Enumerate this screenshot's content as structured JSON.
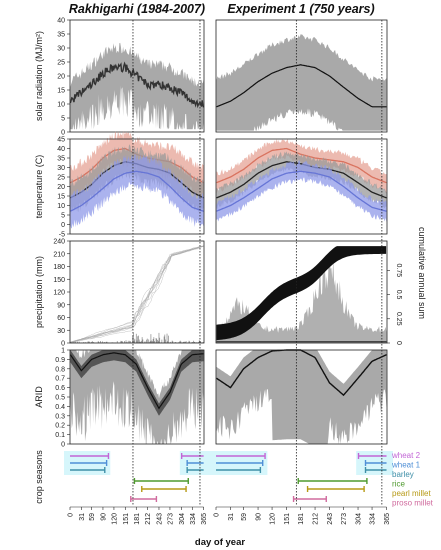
{
  "figure": {
    "left_title": "Rakhigarhi (1984-2007)",
    "right_title": "Experiment 1 (750 years)",
    "x_axis_label": "day of year",
    "right_axis_label": "cumulative annual sum"
  },
  "chart_data": [
    {
      "panel": "solar radiation",
      "type": "line",
      "ylabel": "solar radiation (MJ/m²)",
      "ylim": [
        0,
        40
      ],
      "y_ticks": [
        0,
        5,
        10,
        15,
        20,
        25,
        30,
        35,
        40
      ],
      "x": [
        1,
        31,
        59,
        90,
        120,
        151,
        181,
        212,
        243,
        273,
        304,
        334,
        365
      ],
      "left_mean": [
        11,
        14,
        17,
        21,
        23,
        23,
        20,
        17,
        17,
        16,
        14,
        11,
        10
      ],
      "right_mean": [
        9,
        11,
        14,
        18,
        21,
        23,
        24,
        23,
        20,
        16,
        12,
        9,
        9
      ]
    },
    {
      "panel": "temperature",
      "type": "area",
      "ylabel": "temperature (C)",
      "ylim": [
        -5,
        45
      ],
      "y_ticks": [
        -5,
        0,
        5,
        10,
        15,
        20,
        25,
        30,
        35,
        40,
        45
      ],
      "x": [
        1,
        31,
        59,
        90,
        120,
        151,
        181,
        212,
        243,
        273,
        304,
        334,
        365
      ],
      "series": [
        {
          "name": "max",
          "color": "#d9735f",
          "values": [
            22,
            25,
            29,
            35,
            39,
            40,
            37,
            35,
            34,
            33,
            30,
            25,
            22
          ]
        },
        {
          "name": "mean",
          "color": "#222222",
          "values": [
            14,
            17,
            21,
            27,
            31,
            33,
            32,
            30,
            29,
            27,
            22,
            17,
            14
          ]
        },
        {
          "name": "min",
          "color": "#6675d6",
          "values": [
            7,
            10,
            14,
            19,
            24,
            27,
            28,
            27,
            25,
            20,
            14,
            9,
            7
          ]
        }
      ]
    },
    {
      "panel": "precipitation",
      "type": "bar",
      "ylabel": "precipitation (mm)",
      "ylim": [
        0,
        240
      ],
      "y_ticks": [
        0,
        30,
        60,
        90,
        120,
        150,
        180,
        210,
        240
      ],
      "right_ylim": [
        0,
        1
      ],
      "right_ticks": [
        0,
        0.25,
        0.5,
        0.75
      ]
    },
    {
      "panel": "ARID",
      "type": "line",
      "ylabel": "ARID",
      "ylim": [
        0,
        1
      ],
      "y_ticks": [
        0,
        0.1,
        0.2,
        0.3,
        0.4,
        0.5,
        0.6,
        0.7,
        0.8,
        0.9,
        1
      ],
      "x": [
        1,
        31,
        59,
        90,
        120,
        151,
        181,
        212,
        243,
        273,
        304,
        334,
        365
      ],
      "left_mean": [
        0.95,
        0.78,
        0.9,
        0.95,
        0.97,
        0.95,
        0.85,
        0.6,
        0.38,
        0.55,
        0.85,
        0.95,
        0.96
      ],
      "right_mean": [
        0.7,
        0.6,
        0.8,
        0.92,
        0.99,
        1.0,
        1.0,
        0.92,
        0.65,
        0.52,
        0.7,
        0.88,
        0.95
      ]
    },
    {
      "panel": "crop seasons",
      "type": "table",
      "ylabel": "crop seasons",
      "x_ticks": [
        0,
        31,
        59,
        90,
        120,
        151,
        181,
        212,
        243,
        273,
        304,
        334,
        365
      ],
      "legend": [
        {
          "name": "wheat 2",
          "color": "#c265d6"
        },
        {
          "name": "wheat 1",
          "color": "#4f8fd6"
        },
        {
          "name": "barley",
          "color": "#3f8fa8"
        },
        {
          "name": "rice",
          "color": "#4f9a2f"
        },
        {
          "name": "pearl millet",
          "color": "#b79a16"
        },
        {
          "name": "proso millet",
          "color": "#d06b9e"
        }
      ],
      "seasons": [
        {
          "crop": "wheat 2",
          "color": "#c265d6",
          "start": 305,
          "end": 105
        },
        {
          "crop": "wheat 1",
          "color": "#4f8fd6",
          "start": 320,
          "end": 100
        },
        {
          "crop": "barley",
          "color": "#3f8fa8",
          "start": 320,
          "end": 95
        },
        {
          "crop": "rice",
          "color": "#4f9a2f",
          "start": 176,
          "end": 323
        },
        {
          "crop": "pearl millet",
          "color": "#b79a16",
          "start": 196,
          "end": 317
        },
        {
          "crop": "proso millet",
          "color": "#d06b9e",
          "start": 166,
          "end": 236
        }
      ],
      "vertical_marker_days": [
        172,
        355
      ]
    }
  ]
}
